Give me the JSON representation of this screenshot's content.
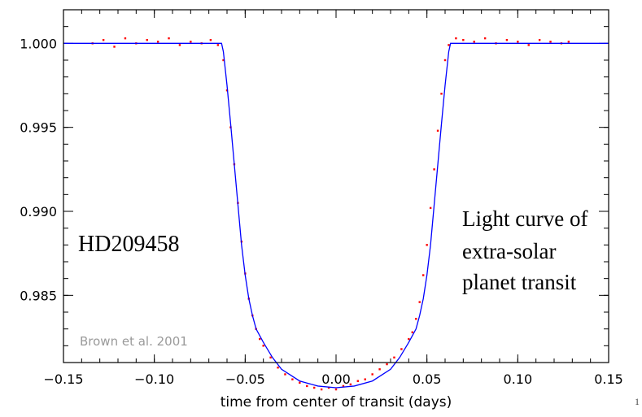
{
  "chart_data": {
    "type": "scatter",
    "title": "",
    "xlabel": "time from center of transit (days)",
    "ylabel": "",
    "xlim": [
      -0.15,
      0.15
    ],
    "ylim": [
      0.981,
      1.002
    ],
    "x_ticks": [
      -0.15,
      -0.1,
      -0.05,
      0.0,
      0.05,
      0.1,
      0.15
    ],
    "x_tick_labels": [
      "−0.15",
      "−0.10",
      "−0.05",
      "0.00",
      "0.05",
      "0.10",
      "0.15"
    ],
    "y_ticks": [
      0.985,
      0.99,
      0.995,
      1.0
    ],
    "y_tick_labels": [
      "0.985",
      "0.990",
      "0.995",
      "1.000"
    ],
    "grid": false,
    "series": [
      {
        "kind": "points",
        "color": "#ff0000",
        "x": [
          -0.134,
          -0.128,
          -0.122,
          -0.116,
          -0.11,
          -0.104,
          -0.098,
          -0.092,
          -0.086,
          -0.08,
          -0.074,
          -0.069,
          -0.065,
          -0.062,
          -0.06,
          -0.058,
          -0.056,
          -0.054,
          -0.052,
          -0.05,
          -0.048,
          -0.046,
          -0.044,
          -0.042,
          -0.04,
          -0.036,
          -0.032,
          -0.028,
          -0.024,
          -0.02,
          -0.016,
          -0.012,
          -0.008,
          -0.004,
          0.0,
          0.004,
          0.008,
          0.012,
          0.016,
          0.02,
          0.024,
          0.028,
          0.032,
          0.036,
          0.04,
          0.042,
          0.044,
          0.046,
          0.048,
          0.05,
          0.052,
          0.054,
          0.056,
          0.058,
          0.06,
          0.062,
          0.066,
          0.07,
          0.076,
          0.082,
          0.088,
          0.094,
          0.1,
          0.106,
          0.112,
          0.118,
          0.124,
          0.128
        ],
        "y": [
          1.0,
          1.0002,
          0.9998,
          1.0003,
          1.0,
          1.0002,
          1.0001,
          1.0003,
          0.9999,
          1.0001,
          1.0,
          1.0002,
          0.9999,
          0.999,
          0.9972,
          0.995,
          0.9928,
          0.9905,
          0.9882,
          0.9863,
          0.9848,
          0.9838,
          0.983,
          0.9824,
          0.982,
          0.9813,
          0.9807,
          0.9803,
          0.98,
          0.9798,
          0.9796,
          0.9795,
          0.9794,
          0.9795,
          0.9794,
          0.9796,
          0.9797,
          0.9799,
          0.98,
          0.9803,
          0.9806,
          0.9809,
          0.9813,
          0.9818,
          0.9824,
          0.9828,
          0.9836,
          0.9846,
          0.9862,
          0.988,
          0.9902,
          0.9925,
          0.9948,
          0.997,
          0.999,
          0.9999,
          1.0003,
          1.0002,
          1.0001,
          1.0003,
          1.0,
          1.0002,
          1.0001,
          0.9999,
          1.0002,
          1.0001,
          1.0,
          1.0001
        ]
      },
      {
        "kind": "model-line",
        "color": "#0000ff",
        "x": [
          -0.15,
          -0.063,
          -0.062,
          -0.06,
          -0.058,
          -0.056,
          -0.054,
          -0.052,
          -0.05,
          -0.048,
          -0.046,
          -0.044,
          -0.04,
          -0.035,
          -0.03,
          -0.02,
          -0.01,
          0.0,
          0.01,
          0.02,
          0.03,
          0.035,
          0.04,
          0.044,
          0.046,
          0.048,
          0.05,
          0.052,
          0.054,
          0.056,
          0.058,
          0.06,
          0.062,
          0.063,
          0.15
        ],
        "y": [
          1.0,
          1.0,
          0.9995,
          0.9975,
          0.9952,
          0.9928,
          0.9904,
          0.988,
          0.9862,
          0.9848,
          0.9838,
          0.983,
          0.9822,
          0.9813,
          0.9806,
          0.9799,
          0.9796,
          0.9795,
          0.9796,
          0.9799,
          0.9806,
          0.9813,
          0.9822,
          0.983,
          0.9838,
          0.9848,
          0.9862,
          0.988,
          0.9904,
          0.9928,
          0.9952,
          0.9975,
          0.9995,
          1.0,
          1.0
        ]
      }
    ],
    "annotations": {
      "star": "HD209458",
      "caption_lines": [
        "Light curve of",
        "extra-solar",
        "planet transit"
      ],
      "credit": "Brown et al. 2001",
      "slide_number": "1"
    }
  }
}
